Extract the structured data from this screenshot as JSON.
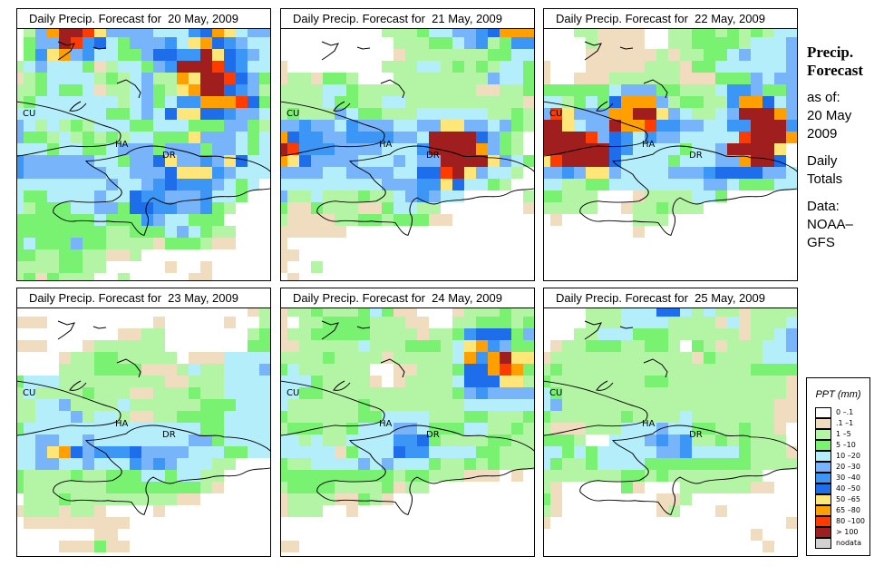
{
  "sidebar": {
    "heading1": "Precip.",
    "heading2": "Forecast",
    "asof": "as of:",
    "date1": "20 May",
    "date2": "2009",
    "totals1": "Daily",
    "totals2": "Totals",
    "data1": "Data:",
    "data2": "NOAA–",
    "data3": "GFS"
  },
  "legend": {
    "title": "PPT (mm)",
    "items": [
      {
        "label": "0 –.1",
        "color": "#ffffff"
      },
      {
        "label": ".1 –1",
        "color": "#f0dcbe"
      },
      {
        "label": "1 –5",
        "color": "#b4f5a5"
      },
      {
        "label": "5 –10",
        "color": "#78f270"
      },
      {
        "label": "10 –20",
        "color": "#b4eefa"
      },
      {
        "label": "20 –30",
        "color": "#78b4fa"
      },
      {
        "label": "30 –40",
        "color": "#3c96f5"
      },
      {
        "label": "40 –50",
        "color": "#1e6eeb"
      },
      {
        "label": "50 –65",
        "color": "#ffe678"
      },
      {
        "label": "65 –80",
        "color": "#ffa000"
      },
      {
        "label": "80 –100",
        "color": "#ff3c00"
      },
      {
        "label": "> 100",
        "color": "#a01e1e"
      },
      {
        "label": "nodata",
        "color": "#d2d2d2"
      }
    ]
  },
  "labels": {
    "cuba": "CU",
    "haiti": "HA",
    "dr": "DR"
  },
  "chart_data": {
    "type": "heatmap",
    "title": "Daily Precip. Forecast",
    "units": "PPT (mm)",
    "encoding": "each character is a legend class index: 0=0–.1, 1=.1–1, 2=1–5, 3=5–10, 4=10–20, 5=20–30, 6=30–40, 7=40–50, 8=50–65, 9=65–80, a=80–100, b=>100",
    "panels": [
      {
        "title": "Daily Precip. Forecast for  20 May, 2009",
        "grid": [
          "0259bba85555444679845544",
          "0355ba674355564897654444",
          "0368956443357766b8765444",
          "24544431244356bbba764444",
          "1234444232452298bba75324",
          "2234334122453289bb765234",
          "2344444442453466999a7334",
          "4444444433454788776554432",
          "5424232444334443335532232",
          "5332423232443338555434323",
          "4443443345553555355434322",
          "6555555443557855658744331",
          "6555555544555788865444431",
          "4444444454456766654340021",
          "4334444544766555644300021",
          "4233344553776655632000002",
          "3333333433365443330000000",
          "3333333322333454322000000",
          "3433353322221333211000000",
          "3322332211200000000000000",
          "2222332200000100100000000",
          "2313222002000001100000000"
        ]
      },
      {
        "title": "Daily Precip. Forecast for  21 May, 2009",
        "grid": [
          "0000000002223445567999",
          "0000000000222334562366",
          "0000000000122222223344",
          "1000000002224423232443",
          "1221332000222222225443",
          "2222443222222222211223",
          "2222433224422222222221",
          "2322254332224444442232",
          "5565546555445588554532",
          "9766556666554bbbb7532",
          "ba66655554446bbbb9532",
          "98755554445455bbbb8543",
          "55554455554477ab85442",
          "44444444455566874432",
          "5224222322456544000002",
          "3113222113442200000001",
          "2111122332333110000000",
          "1111110000000000000000",
          "1000000000000000000000",
          "1100000000000000000000",
          "1002000000000000000000",
          "0100000000000000000000"
        ]
      },
      {
        "title": "Daily Precip. Forecast for  22 May, 2009",
        "grid": [
          "0002211110022332323244",
          "0000211110022333324445",
          "0000111111212233454445",
          "1000111112221334444445",
          "1001112222221113335455",
          "3333334555332224665335",
          "4423437999523322699745",
          "5a855599bb8542245bbb95",
          "bb8455b99a66554466bbb6",
          "bbbba576465544444abbb9",
          "bbbbbb7644443445bbbb8",
          "8abbbb744443444559bb7",
          "5565885444455567777554",
          "4422334444444455433344",
          "3322200012222443000000",
          "2222200122322200000000",
          "0100000022200000000000",
          "0000000010000000000000",
          "0000000000000000000000",
          "0000000000000000000000",
          "0000000000000000000000",
          "0000000000000000000000"
        ]
      },
      {
        "title": "Daily Precip. Forecast for  23 May, 2009",
        "grid": [
          "0000000000000000000012",
          "1110000000001000001002",
          "0000000001122000000023",
          "1110001222222000000033",
          "0000122332222201114444",
          "0000222333311124224445",
          "3444222222222112224444",
          "2422223222112223224444",
          "2244522224222222333444",
          "2244452442112233334444",
          "3444444444444444334444",
          "4455445444444445534444",
          "4458975666755554443344",
          "4455445444656544422000",
          "3222232233344344220000",
          "3222222233333333210000",
          "0222322222222211000000",
          "1222122100001000000000",
          "0111111111000000000000",
          "0000000110000000000000",
          "0000111311000000000000",
          "0000000000000000000000"
        ]
      },
      {
        "title": "Daily Precip. Forecast for  24 May, 2009",
        "grid": [
          "1223222343110001222322",
          "1022333322211002233323",
          "1223333322221223677735",
          "1122222422233324896533",
          "2222322221222224969b88",
          "3422222200112223779a93",
          "4443222210122224777882",
          "4433222222222223565555",
          "4222222322222222444444",
          "3222222334444222332223",
          "2333223444554333442232",
          "4424224444667322223322",
          "4444413444766444433222",
          "3224444545444322323222",
          "3333333333233222111010",
          "2333322223122000000000",
          "1222211321000000000000",
          "1222001000000000000000",
          "0000000000000000000000",
          "0000000000000000000000",
          "1100000000000000000000",
          "0000000000000000000000"
        ]
      },
      {
        "title": "Daily Precip. Forecast for  25 May, 2009",
        "grid": [
          "0000222444774242212222",
          "0000222444422221412224",
          "0002244433322222212245",
          "0122333223320321222445",
          "1222222222222132222444",
          "2322222222222222223333",
          "3222222223322222222221",
          "4322222222222222222221",
          "4522222222222222222211",
          "3222222322224222222211",
          "2111222444544332232210",
          "3332004445656223232220",
          "4434344444556444432221",
          "4322344443333333332222",
          "2222222332322222222000",
          "2100000310002222221100",
          "3100000000112000000000",
          "2100000000120001000000",
          "1000000000000000000001",
          "0000000000000000001000",
          "0000000000000000000100",
          "0000000000000000000000"
        ]
      }
    ]
  }
}
